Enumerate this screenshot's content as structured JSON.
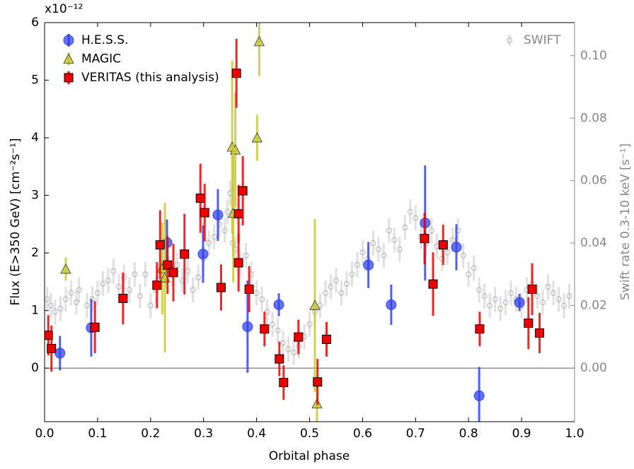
{
  "chart_data": {
    "type": "scatter",
    "xlabel": "Orbital phase",
    "ylabel": "Flux (E>350 GeV) [cm⁻²s⁻¹]",
    "y2label": "Swift rate 0.3-10 keV [s⁻¹]",
    "y_offset_label": "x10⁻¹²",
    "xlim": [
      0,
      1
    ],
    "xticks": [
      {
        "value": 0,
        "label": "0.0"
      },
      0.1,
      0.2,
      0.3,
      0.4,
      0.5,
      0.6,
      0.7,
      0.8,
      0.9,
      {
        "value": 1,
        "label": "1.0"
      }
    ],
    "ylim": [
      -0.93,
      6
    ],
    "yticks": [
      0,
      1,
      2,
      3,
      4,
      5,
      6
    ],
    "y2lim": [
      -0.0172,
      0.1106
    ],
    "y2ticks": [
      {
        "value": 0,
        "label": "0.00"
      },
      {
        "value": 0.02,
        "label": "0.02"
      },
      {
        "value": 0.04,
        "label": "0.04"
      },
      {
        "value": 0.06,
        "label": "0.06"
      },
      {
        "value": 0.08,
        "label": "0.08"
      },
      {
        "value": 0.1,
        "label": "0.10"
      }
    ],
    "legend": "upper left",
    "series": [
      {
        "name": "H.E.S.S.",
        "color": "#3344ee",
        "marker": "circle",
        "x": [
          0.029,
          0.088,
          0.231,
          0.299,
          0.327,
          0.383,
          0.442,
          0.611,
          0.654,
          0.718,
          0.777,
          0.82,
          0.896
        ],
        "values": [
          0.26,
          0.7,
          2.18,
          1.98,
          2.66,
          0.72,
          1.1,
          1.79,
          1.1,
          2.52,
          2.1,
          -0.48,
          1.14
        ],
        "errors": [
          0.3,
          0.5,
          0.4,
          0.5,
          0.45,
          0.8,
          0.2,
          0.4,
          0.35,
          1.0,
          0.4,
          0.5,
          0.15
        ]
      },
      {
        "name": "MAGIC",
        "color": "#c8c832",
        "marker": "triangle",
        "x": [
          0.04,
          0.222,
          0.227,
          0.354,
          0.36,
          0.356,
          0.401,
          0.405,
          0.51,
          0.514
        ],
        "values": [
          1.72,
          1.73,
          1.57,
          3.84,
          3.79,
          2.69,
          4.0,
          5.67,
          1.09,
          -0.62
        ],
        "errors": [
          0.2,
          0.8,
          1.3,
          1.5,
          1.0,
          1.2,
          0.4,
          0.6,
          1.5,
          0.4
        ]
      },
      {
        "name": "VERITAS (this analysis)",
        "color": "#ee0000",
        "marker": "square",
        "x": [
          0.007,
          0.013,
          0.095,
          0.148,
          0.212,
          0.218,
          0.232,
          0.243,
          0.264,
          0.294,
          0.302,
          0.333,
          0.362,
          0.366,
          0.366,
          0.374,
          0.386,
          0.415,
          0.443,
          0.451,
          0.479,
          0.515,
          0.532,
          0.717,
          0.733,
          0.752,
          0.821,
          0.913,
          0.92,
          0.934
        ],
        "values": [
          0.57,
          0.34,
          0.71,
          1.21,
          1.44,
          2.14,
          1.79,
          1.66,
          1.98,
          2.95,
          2.7,
          1.4,
          5.12,
          2.68,
          1.83,
          3.08,
          1.37,
          0.68,
          0.16,
          -0.25,
          0.54,
          -0.24,
          0.5,
          2.25,
          1.46,
          2.14,
          0.68,
          0.78,
          1.37,
          0.61
        ],
        "errors": [
          0.35,
          0.4,
          0.45,
          0.45,
          0.4,
          0.6,
          0.5,
          0.5,
          0.7,
          0.6,
          0.5,
          0.4,
          0.6,
          0.5,
          0.5,
          0.6,
          0.4,
          0.3,
          0.3,
          0.3,
          0.3,
          0.4,
          0.3,
          0.45,
          0.55,
          0.35,
          0.3,
          0.45,
          0.45,
          0.35
        ]
      },
      {
        "name": "SWIFT",
        "color": "#999999",
        "marker": "small-circle",
        "axis": "y2",
        "legend": "upper right",
        "x": [
          0.005,
          0.012,
          0.02,
          0.03,
          0.04,
          0.05,
          0.06,
          0.065,
          0.08,
          0.09,
          0.1,
          0.11,
          0.12,
          0.13,
          0.14,
          0.15,
          0.16,
          0.17,
          0.18,
          0.19,
          0.2,
          0.21,
          0.22,
          0.23,
          0.24,
          0.25,
          0.26,
          0.27,
          0.28,
          0.29,
          0.3,
          0.31,
          0.32,
          0.33,
          0.34,
          0.345,
          0.35,
          0.355,
          0.36,
          0.37,
          0.38,
          0.39,
          0.4,
          0.41,
          0.42,
          0.43,
          0.44,
          0.45,
          0.46,
          0.47,
          0.48,
          0.49,
          0.5,
          0.51,
          0.52,
          0.53,
          0.54,
          0.55,
          0.56,
          0.57,
          0.58,
          0.59,
          0.6,
          0.61,
          0.62,
          0.63,
          0.64,
          0.65,
          0.66,
          0.67,
          0.68,
          0.69,
          0.7,
          0.71,
          0.72,
          0.73,
          0.74,
          0.75,
          0.76,
          0.77,
          0.78,
          0.79,
          0.8,
          0.81,
          0.82,
          0.83,
          0.84,
          0.85,
          0.86,
          0.87,
          0.88,
          0.89,
          0.9,
          0.91,
          0.92,
          0.93,
          0.94,
          0.95,
          0.96,
          0.97,
          0.98,
          0.99
        ],
        "values": [
          0.022,
          0.02,
          0.018,
          0.019,
          0.022,
          0.024,
          0.021,
          0.025,
          0.02,
          0.022,
          0.024,
          0.027,
          0.028,
          0.031,
          0.026,
          0.029,
          0.025,
          0.03,
          0.023,
          0.03,
          0.02,
          0.025,
          0.032,
          0.035,
          0.03,
          0.033,
          0.028,
          0.031,
          0.025,
          0.029,
          0.035,
          0.04,
          0.042,
          0.046,
          0.044,
          0.05,
          0.056,
          0.04,
          0.038,
          0.033,
          0.036,
          0.03,
          0.024,
          0.022,
          0.018,
          0.014,
          0.012,
          0.008,
          0.006,
          0.005,
          0.007,
          0.01,
          0.014,
          0.018,
          0.02,
          0.024,
          0.026,
          0.028,
          0.024,
          0.027,
          0.03,
          0.033,
          0.037,
          0.035,
          0.04,
          0.038,
          0.036,
          0.044,
          0.041,
          0.038,
          0.045,
          0.05,
          0.048,
          0.042,
          0.04,
          0.044,
          0.039,
          0.035,
          0.037,
          0.041,
          0.044,
          0.036,
          0.03,
          0.032,
          0.025,
          0.023,
          0.02,
          0.022,
          0.019,
          0.021,
          0.024,
          0.022,
          0.02,
          0.025,
          0.027,
          0.023,
          0.021,
          0.026,
          0.024,
          0.022,
          0.02,
          0.023
        ],
        "error": 0.004
      }
    ]
  }
}
